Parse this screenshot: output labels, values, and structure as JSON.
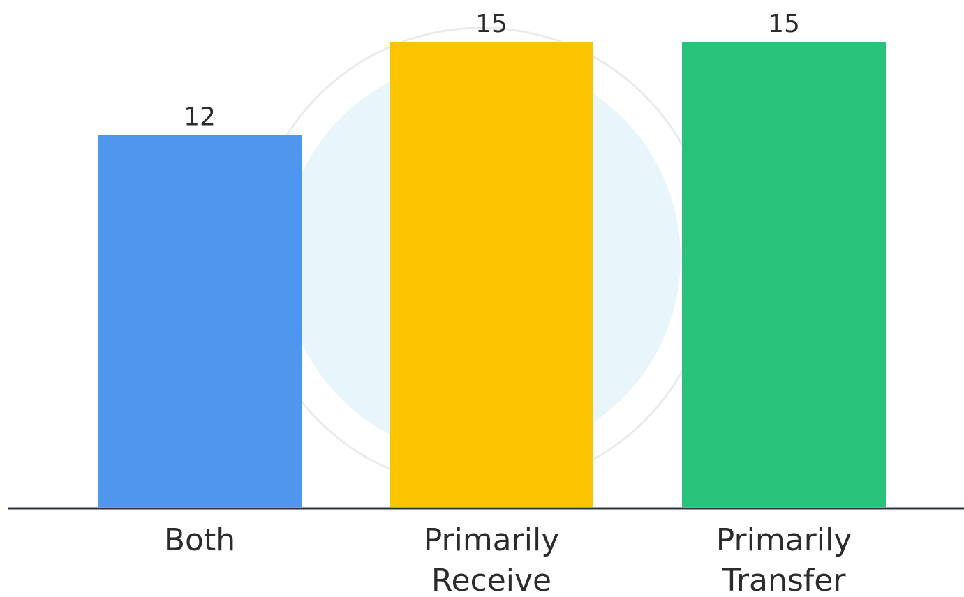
{
  "chart_data": {
    "type": "bar",
    "categories": [
      "Both",
      "Primarily Receive",
      "Primarily Transfer"
    ],
    "category_lines": [
      [
        "Both"
      ],
      [
        "Primarily",
        "Receive"
      ],
      [
        "Primarily",
        "Transfer"
      ]
    ],
    "values": [
      12,
      15,
      15
    ],
    "data_labels": [
      "12",
      "15",
      "15"
    ],
    "colors": [
      "#4f97ee",
      "#fbc300",
      "#28c27a"
    ],
    "title": "",
    "xlabel": "",
    "ylabel": "",
    "ylim": [
      0,
      15
    ],
    "grid": false,
    "legend": "none"
  },
  "watermark": {
    "colors": [
      "#d6eef8",
      "#d9dde2"
    ]
  }
}
